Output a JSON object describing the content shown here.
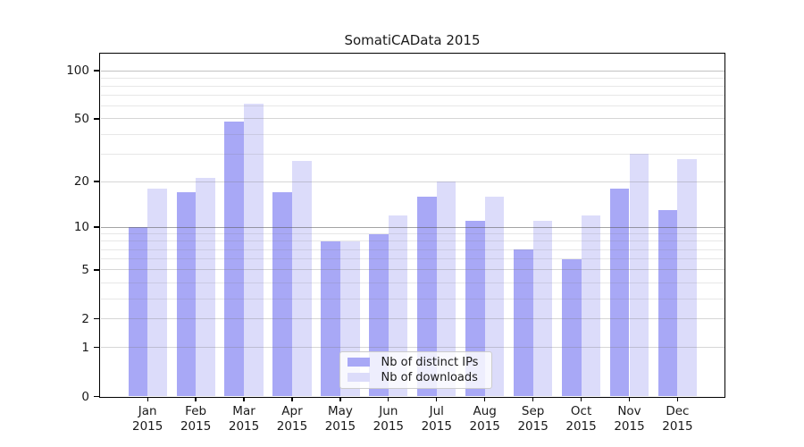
{
  "title": "SomatiCAData 2015",
  "chart_data": {
    "type": "bar",
    "title": "SomatiCAData 2015",
    "categories": [
      "Jan 2015",
      "Feb 2015",
      "Mar 2015",
      "Apr 2015",
      "May 2015",
      "Jun 2015",
      "Jul 2015",
      "Aug 2015",
      "Sep 2015",
      "Oct 2015",
      "Nov 2015",
      "Dec 2015"
    ],
    "series": [
      {
        "name": "Nb of distinct IPs",
        "color": "#a8a8f6",
        "values": [
          10,
          17,
          48,
          17,
          8,
          9,
          16,
          11,
          7,
          6,
          18,
          13
        ]
      },
      {
        "name": "Nb of downloads",
        "color": "#dcdcfa",
        "values": [
          18,
          21,
          62,
          27,
          8,
          12,
          20,
          16,
          11,
          12,
          30,
          28
        ]
      }
    ],
    "y_scale": "log1p",
    "y_ticks": [
      0,
      1,
      2,
      5,
      10,
      20,
      50,
      100
    ],
    "y_minor_gridlines": [
      3,
      4,
      6,
      7,
      8,
      9,
      30,
      40,
      60,
      70,
      80,
      90
    ],
    "ylim": [
      0,
      125
    ],
    "xlabel": "",
    "ylabel": "",
    "grid": true,
    "legend_position": "lower center"
  },
  "colors": {
    "background": "#ffffff",
    "axis": "#000000",
    "grid_major": "#d9d9d9",
    "grid_minor": "#eaeaea",
    "grid_decade": "#a8a8a8",
    "text": "#1a1a1a"
  }
}
